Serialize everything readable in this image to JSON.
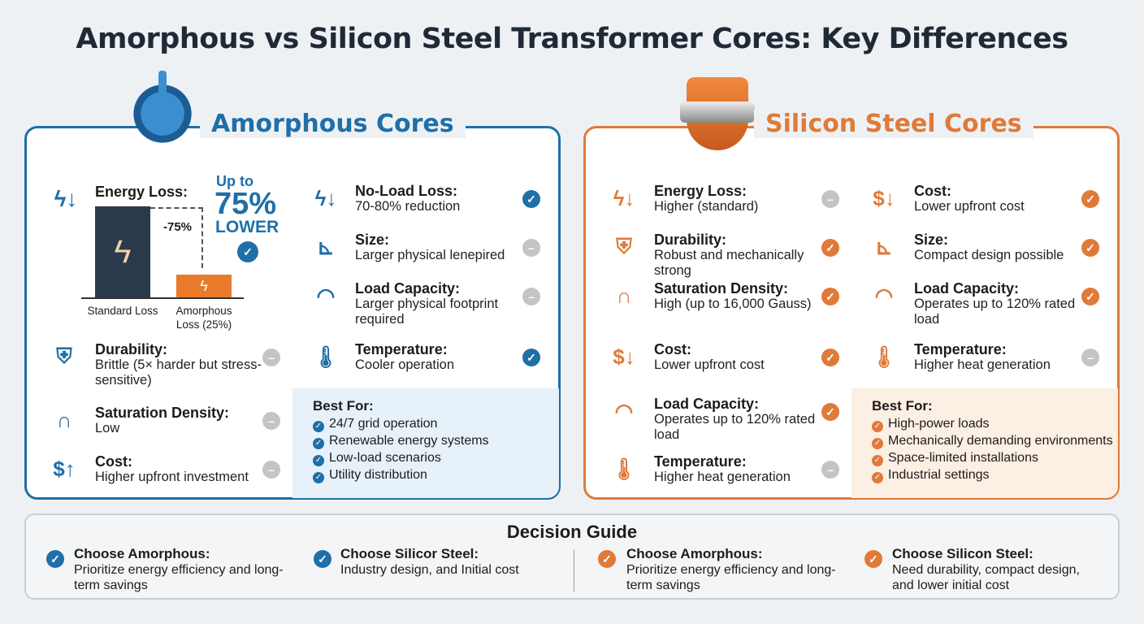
{
  "title": "Amorphous vs Silicon Steel Transformer Cores: Key Differences",
  "colors": {
    "blue": "#1f6fa8",
    "orange": "#e07a38",
    "neutral": "#c4c4c4"
  },
  "amorphous": {
    "title": "Amorphous Cores",
    "icon": "power-button-icon",
    "energy_loss": {
      "label": "Energy Loss:",
      "callout_top": "Up to",
      "callout_value": "75%",
      "callout_bottom": "LOWER",
      "reduction_label": "-75%",
      "bars": [
        {
          "label": "Standard Loss",
          "value": 100
        },
        {
          "label": "Amorphous Loss (25%)",
          "value": 25
        }
      ]
    },
    "items": [
      {
        "title": "Durability:",
        "desc": "Brittle (5× harder but stress-sensitive)",
        "icon": "shield-icon",
        "status": "neutral"
      },
      {
        "title": "Saturation Density:",
        "desc": "Low",
        "icon": "magnet-icon",
        "status": "neutral"
      },
      {
        "title": "Cost:",
        "desc": "Higher upfront investment",
        "icon": "dollar-up-icon",
        "status": "neutral"
      },
      {
        "title": "No-Load Loss:",
        "desc": "70-80% reduction",
        "icon": "lightning-down-icon",
        "status": "check"
      },
      {
        "title": "Size:",
        "desc": "Larger physical lenepired",
        "icon": "ruler-icon",
        "status": "neutral"
      },
      {
        "title": "Load Capacity:",
        "desc": "Larger physical footprint required",
        "icon": "gauge-icon",
        "status": "neutral"
      },
      {
        "title": "Temperature:",
        "desc": "Cooler operation",
        "icon": "thermometer-snow-icon",
        "status": "check"
      }
    ],
    "best_for": {
      "title": "Best For:",
      "items": [
        "24/7 grid operation",
        "Renewable energy systems",
        "Low-load scenarios",
        "Utility distribution"
      ]
    }
  },
  "silicon": {
    "title": "Silicon Steel Cores",
    "icon": "shield-steel-icon",
    "items": [
      {
        "title": "Energy Loss:",
        "desc": "Higher (standard)",
        "icon": "lightning-down-icon",
        "status": "neutral"
      },
      {
        "title": "Durability:",
        "desc": "Robust and mechanically strong",
        "icon": "shield-check-icon",
        "status": "check"
      },
      {
        "title": "Saturation Density:",
        "desc": "High (up to 16,000 Gauss)",
        "icon": "magnet-icon",
        "status": "check"
      },
      {
        "title": "Cost:",
        "desc": "Lower upfront cost",
        "icon": "dollar-down-icon",
        "status": "check"
      },
      {
        "title": "Load Capacity:",
        "desc": "Operates up to 120% rated load",
        "icon": "gauge-icon",
        "status": "check"
      },
      {
        "title": "Temperature:",
        "desc": "Higher heat generation",
        "icon": "thermometer-heat-icon",
        "status": "neutral"
      },
      {
        "title": "Cost:",
        "desc": "Lower upfront cost",
        "icon": "dollar-down-icon",
        "status": "check"
      },
      {
        "title": "Size:",
        "desc": "Compact design possible",
        "icon": "ruler-icon",
        "status": "check"
      },
      {
        "title": "Load Capacity:",
        "desc": "Operates up to 120% rated load",
        "icon": "gauge-icon",
        "status": "check"
      },
      {
        "title": "Temperature:",
        "desc": "Higher heat generation",
        "icon": "thermometer-heat-icon",
        "status": "neutral"
      }
    ],
    "best_for": {
      "title": "Best For:",
      "items": [
        "High-power loads",
        "Mechanically demanding environments",
        "Space-limited installations",
        "Industrial settings"
      ]
    }
  },
  "guide": {
    "title": "Decision Guide",
    "items": [
      {
        "title": "Choose Amorphous:",
        "desc": "Prioritize energy efficiency and long-term savings",
        "color": "blue"
      },
      {
        "title": "Choose Silicor Steel:",
        "desc": "Industry design, and Initial cost",
        "color": "blue"
      },
      {
        "title": "Choose Amorphous:",
        "desc": "Prioritize energy efficiency and long-term savings",
        "color": "orange"
      },
      {
        "title": "Choose Silicon Steel:",
        "desc": "Need durability, compact design, and lower initial cost",
        "color": "orange"
      }
    ]
  }
}
